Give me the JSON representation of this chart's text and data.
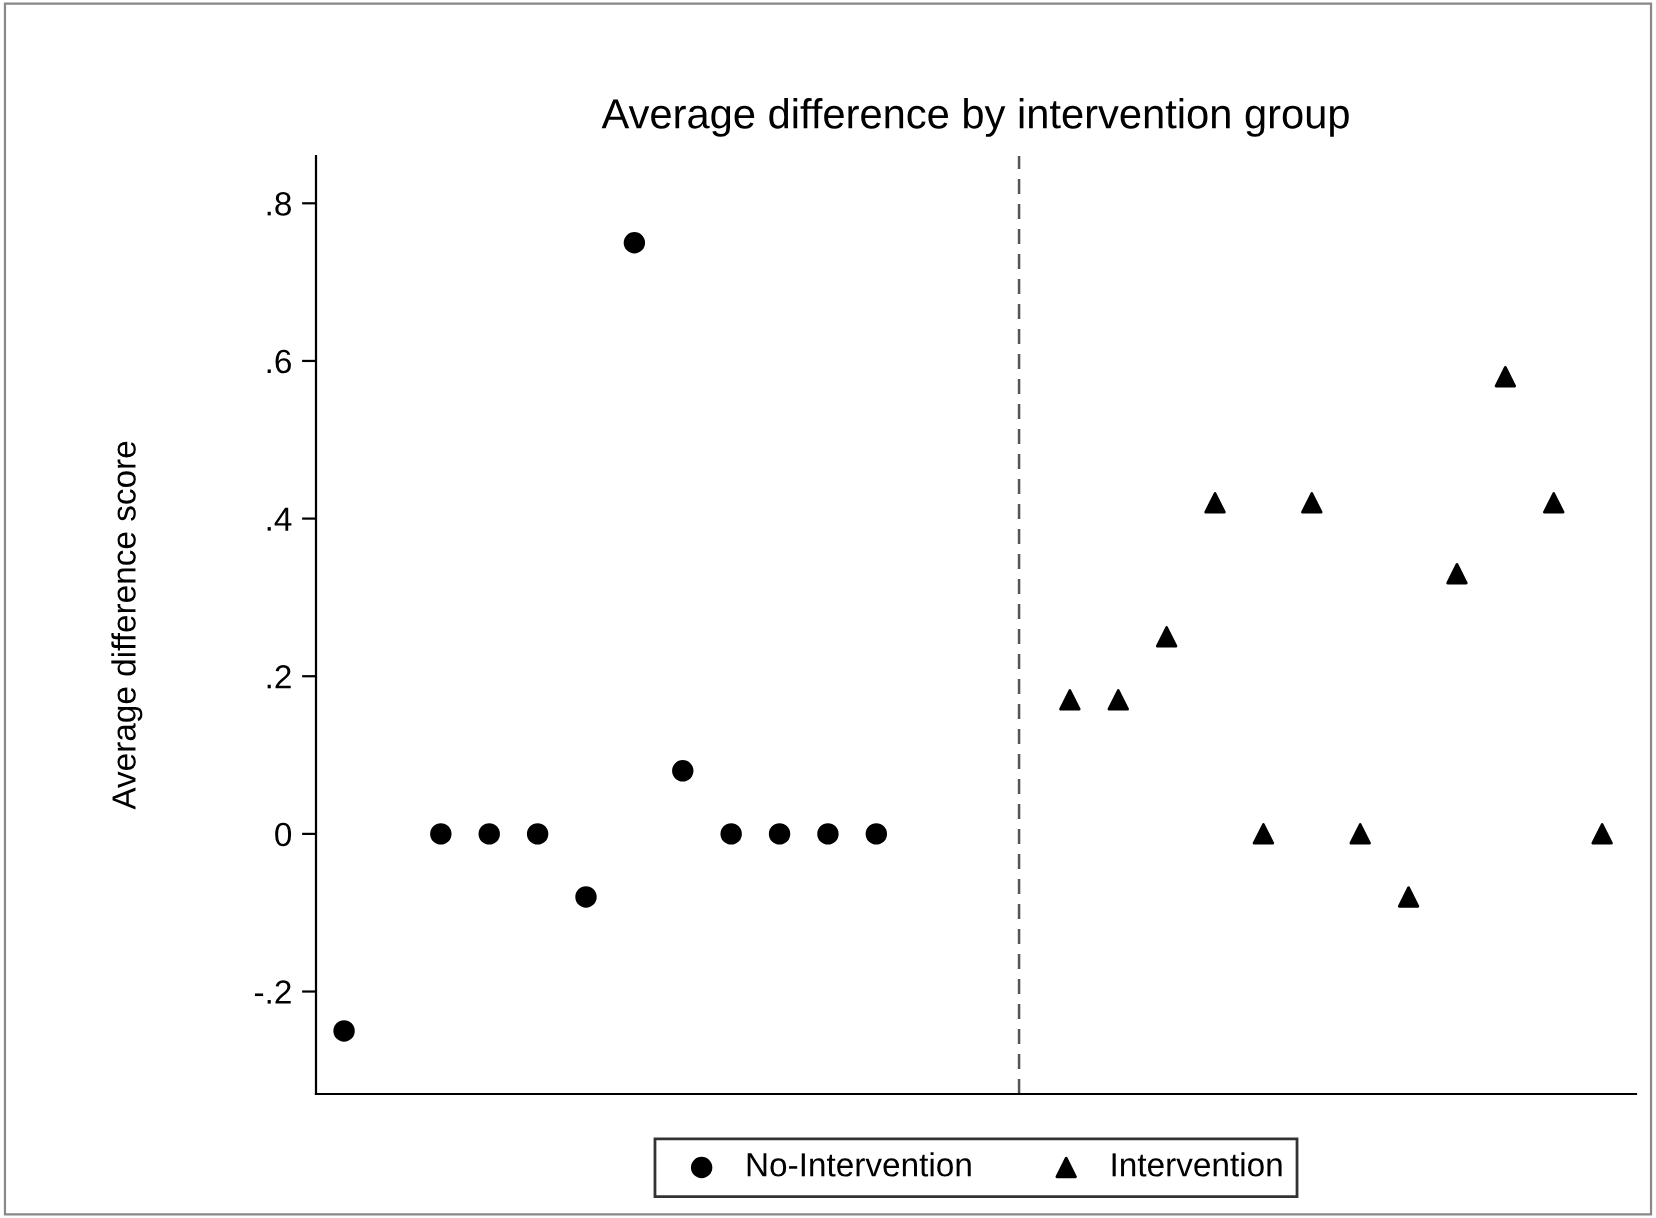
{
  "chart_data": {
    "type": "scatter",
    "title": "Average difference by intervention group",
    "ylabel": "Average difference score",
    "categories": [
      null,
      null,
      null,
      null,
      null,
      null,
      null,
      null,
      null,
      null,
      null,
      null,
      null,
      null,
      null,
      null,
      null,
      null,
      null,
      null,
      null,
      null,
      null,
      null,
      null,
      null,
      null
    ],
    "series": [
      {
        "name": "No-Intervention",
        "color": "#000000",
        "marker": "circle",
        "values": [
          -0.25,
          null,
          0,
          0,
          0,
          -0.08,
          0.75,
          0.08,
          0,
          0,
          0,
          0,
          null,
          null,
          null,
          null,
          null,
          null,
          null,
          null,
          null,
          null,
          null,
          null,
          null,
          null,
          null
        ]
      },
      {
        "name": "Intervention",
        "color": "#000000",
        "marker": "triangle",
        "values": [
          null,
          null,
          null,
          null,
          null,
          null,
          null,
          null,
          null,
          null,
          null,
          null,
          null,
          null,
          null,
          0.17,
          0.17,
          0.25,
          0.42,
          0,
          0.42,
          0,
          -0.08,
          0.33,
          0.58,
          0.42,
          0
        ]
      }
    ],
    "ylim": [
      -0.33,
      0.86
    ],
    "yticks": [
      {
        "value": -0.2,
        "label": "-.2"
      },
      {
        "value": 0,
        "label": "0"
      },
      {
        "value": 0.2,
        "label": ".2"
      },
      {
        "value": 0.4,
        "label": ".4"
      },
      {
        "value": 0.6,
        "label": ".6"
      },
      {
        "value": 0.8,
        "label": ".8"
      }
    ],
    "tick_labels": "y",
    "grid": false,
    "legend": "bottom"
  }
}
